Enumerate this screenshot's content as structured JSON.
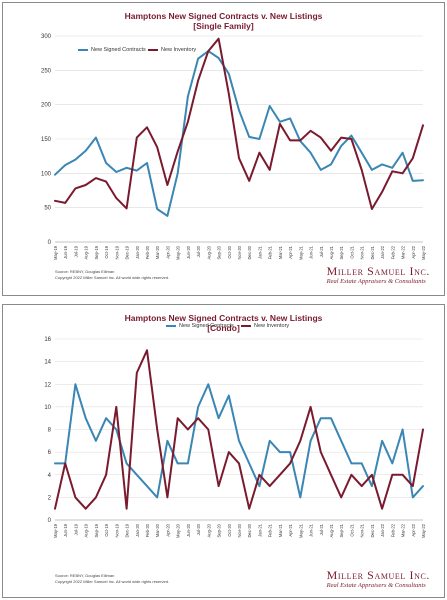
{
  "colors": {
    "contracts": "#3a86b4",
    "listings": "#7a1a2e",
    "grid": "#d9d9d9",
    "title": "#7a1a2e"
  },
  "brand": {
    "name": "Miller Samuel Inc.",
    "tagline": "Real Estate Appraisers & Consultants"
  },
  "chart_data": [
    {
      "type": "line",
      "title": "Hamptons New Signed Contracts v. New Listings",
      "subtitle": "[Single Family]",
      "legend": [
        "New Signed Contracts",
        "New Inventory"
      ],
      "legend_placement": "top-left",
      "ylim": [
        0,
        300
      ],
      "yticks": [
        "0",
        "50",
        "100",
        "150",
        "200",
        "250",
        "300"
      ],
      "grid": true,
      "x": [
        "May-19",
        "Jun-19",
        "Jul-19",
        "Aug-19",
        "Sep-19",
        "Oct-19",
        "Nov-19",
        "Dec-19",
        "Jan-20",
        "Feb-20",
        "Mar-20",
        "Apr-20",
        "May-20",
        "Jun-20",
        "Jul-20",
        "Aug-20",
        "Sep-20",
        "Oct-20",
        "Nov-20",
        "Dec-20",
        "Jan-21",
        "Feb-21",
        "Mar-21",
        "Apr-21",
        "May-21",
        "Jun-21",
        "Jul-21",
        "Aug-21",
        "Sep-21",
        "Oct-21",
        "Nov-21",
        "Dec-21",
        "Jan-22",
        "Feb-22",
        "Mar-22",
        "Apr-22",
        "May-22"
      ],
      "series": [
        {
          "name": "New Signed Contracts",
          "values": [
            98,
            112,
            120,
            133,
            152,
            115,
            102,
            108,
            104,
            115,
            48,
            38,
            100,
            212,
            267,
            278,
            268,
            245,
            192,
            153,
            150,
            198,
            175,
            180,
            147,
            130,
            105,
            113,
            140,
            155,
            130,
            105,
            113,
            108,
            130,
            89,
            90
          ]
        },
        {
          "name": "New Inventory",
          "values": [
            60,
            57,
            78,
            83,
            93,
            88,
            64,
            49,
            152,
            167,
            138,
            83,
            132,
            175,
            235,
            278,
            296,
            216,
            122,
            89,
            130,
            105,
            172,
            148,
            148,
            162,
            152,
            133,
            152,
            150,
            105,
            48,
            73,
            103,
            100,
            122,
            170
          ]
        }
      ],
      "source": [
        "Source: REBNY, Douglas Elliman",
        "Copyright 2022 Miller Samuel Inc. All world wide rights reserved."
      ]
    },
    {
      "type": "line",
      "title": "Hamptons New Signed Contracts v. New Listings",
      "subtitle": "[Condo]",
      "legend": [
        "New Signed Contracts",
        "New Inventory"
      ],
      "legend_placement": "top-center",
      "ylim": [
        0,
        16
      ],
      "yticks": [
        "0",
        "2",
        "4",
        "6",
        "8",
        "10",
        "12",
        "14",
        "16"
      ],
      "grid": true,
      "x": [
        "May-19",
        "Jun-19",
        "Jul-19",
        "Aug-19",
        "Sep-19",
        "Oct-19",
        "Nov-19",
        "Dec-19",
        "Jan-20",
        "Feb-20",
        "Mar-20",
        "Apr-20",
        "May-20",
        "Jun-20",
        "Jul-20",
        "Aug-20",
        "Sep-20",
        "Oct-20",
        "Nov-20",
        "Dec-20",
        "Jan-21",
        "Feb-21",
        "Mar-21",
        "Apr-21",
        "May-21",
        "Jun-21",
        "Jul-21",
        "Aug-21",
        "Sep-21",
        "Oct-21",
        "Nov-21",
        "Dec-21",
        "Jan-22",
        "Feb-22",
        "Mar-22",
        "Apr-22",
        "May-22"
      ],
      "series": [
        {
          "name": "New Signed Contracts",
          "values": [
            5,
            5,
            12,
            9,
            7,
            9,
            8,
            5,
            4,
            3,
            2,
            7,
            5,
            5,
            10,
            12,
            9,
            11,
            7,
            5,
            3,
            7,
            6,
            6,
            2,
            7,
            9,
            9,
            7,
            5,
            5,
            3,
            7,
            5,
            8,
            2,
            3
          ]
        },
        {
          "name": "New Inventory",
          "values": [
            1,
            5,
            2,
            1,
            2,
            4,
            10,
            1,
            13,
            15,
            8,
            2,
            9,
            8,
            9,
            8,
            3,
            6,
            5,
            1,
            4,
            3,
            4,
            5,
            7,
            10,
            6,
            4,
            2,
            4,
            3,
            4,
            1,
            4,
            4,
            3,
            8
          ]
        }
      ],
      "source": [
        "Source: REBNY, Douglas Elliman",
        "Copyright 2022 Miller Samuel Inc. All world wide rights reserved."
      ]
    }
  ]
}
